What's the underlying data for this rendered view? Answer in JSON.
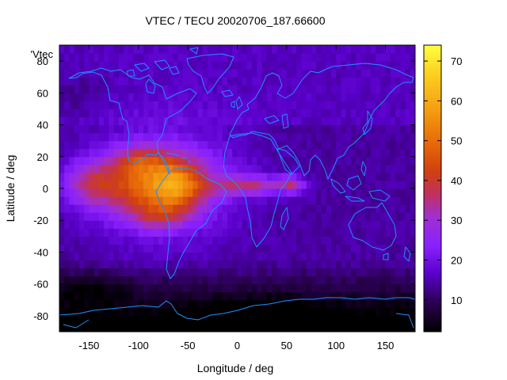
{
  "chart_data": {
    "type": "heatmap",
    "title": "VTEC / TECU 20020706_187.66600",
    "xlabel": "Longitude / deg",
    "ylabel": "Latitude / deg",
    "key_label": "'Vtec",
    "xlim": [
      -180,
      180
    ],
    "ylim": [
      -90,
      90
    ],
    "x_ticks": [
      -150,
      -100,
      -50,
      0,
      50,
      100,
      150
    ],
    "y_ticks": [
      -80,
      -60,
      -40,
      -20,
      0,
      20,
      40,
      60,
      80
    ],
    "colorbar": {
      "range": [
        2,
        74
      ],
      "ticks": [
        10,
        20,
        30,
        40,
        50,
        60,
        70
      ],
      "palette": [
        "#000000",
        "#2a0050",
        "#5800c8",
        "#8a20ff",
        "#a030d0",
        "#c03060",
        "#d04010",
        "#e86a08",
        "#f5a012",
        "#fcd020",
        "#ffff40"
      ]
    },
    "grid_resolution_deg": {
      "lon": 5,
      "lat": 5
    },
    "background_vtec": 14,
    "features": [
      {
        "name": "equatorial_anomaly_americas",
        "lon_center": -85,
        "lat_center": 5,
        "peak": 55
      },
      {
        "name": "south_america_core",
        "lon_center": -60,
        "lat_center": 2,
        "peak": 62
      },
      {
        "name": "mexico_crest",
        "lon_center": -100,
        "lat_center": 18,
        "peak": 46
      },
      {
        "name": "southern_crest",
        "lon_center": -80,
        "lat_center": -18,
        "peak": 46
      },
      {
        "name": "atlantic_africa_tongue",
        "lon_center": 15,
        "lat_center": 2,
        "peak": 38
      },
      {
        "name": "indian_ocean_tip",
        "lon_center": 60,
        "lat_center": 3,
        "peak": 40
      },
      {
        "name": "pacific_tail",
        "lon_center": -150,
        "lat_center": 5,
        "peak": 32
      },
      {
        "name": "polar_night_depletion",
        "lon_center": 0,
        "lat_center": -82,
        "peak": 2
      }
    ]
  }
}
